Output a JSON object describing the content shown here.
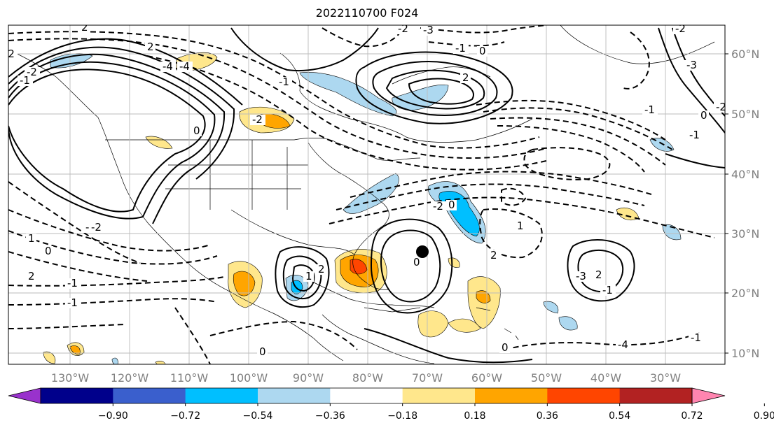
{
  "title": "2022110700 F024",
  "map": {
    "x_ticks": [
      "130°W",
      "120°W",
      "110°W",
      "100°W",
      "90°W",
      "80°W",
      "70°W",
      "60°W",
      "50°W",
      "40°W",
      "30°W"
    ],
    "y_ticks": [
      "60°N",
      "50°N",
      "40°N",
      "30°N",
      "20°N",
      "10°N"
    ],
    "contour_labels": [
      "2",
      "-2",
      "-2",
      "-1",
      "-4",
      "-4",
      "2",
      "-1",
      "-2",
      "-3",
      "-2",
      "1",
      "0",
      "-4",
      "2",
      "-1",
      "-1",
      "-2",
      "0",
      "-1",
      "0",
      "2",
      "2",
      "1",
      "0",
      "0",
      "0",
      "1",
      "2",
      "-2",
      "-3",
      "-1",
      "2",
      "-1",
      "0",
      "-2",
      "-4",
      "-1",
      "0",
      "-3",
      "-1",
      "-2"
    ],
    "marker": "black-dot"
  },
  "colorbar": {
    "colors": [
      "#9932cc",
      "#00008b",
      "#3a5fcd",
      "#00bfff",
      "#add8f0",
      "#ffffff",
      "#ffe78c",
      "#ffa500",
      "#ff4500",
      "#b22222",
      "#ff85b0"
    ],
    "tick_labels": [
      "−0.90",
      "−0.72",
      "−0.54",
      "−0.36",
      "−0.18",
      "0.18",
      "0.36",
      "0.54",
      "0.72",
      "0.90"
    ]
  }
}
